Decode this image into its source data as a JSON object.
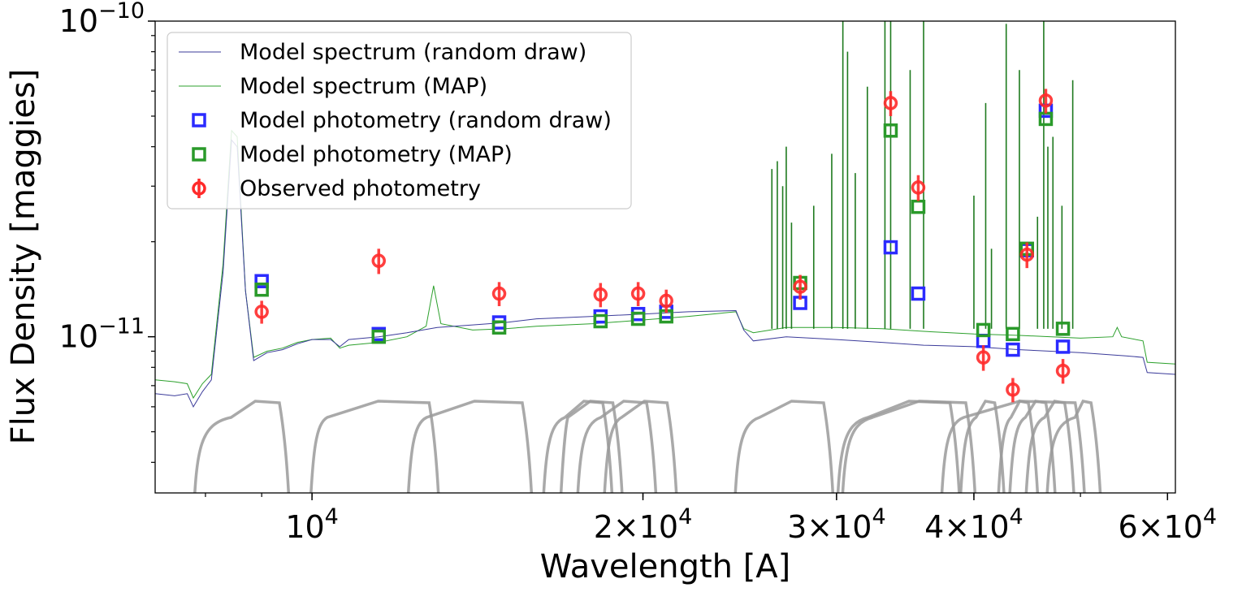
{
  "chart_data": {
    "type": "scatter",
    "title": "",
    "xlabel": "Wavelength [A]",
    "ylabel": "Flux Density [maggies]",
    "xscale": "log",
    "yscale": "log",
    "xlim": [
      7200,
      61000
    ],
    "ylim": [
      3.2e-12,
      1e-10
    ],
    "grid": false,
    "legend_position": "top-left",
    "x_ticks": [
      {
        "value": 10000,
        "base": "10",
        "exp": "4",
        "mantissa": ""
      },
      {
        "value": 20000,
        "base": "10",
        "exp": "4",
        "mantissa": "2"
      },
      {
        "value": 30000,
        "base": "10",
        "exp": "4",
        "mantissa": "3"
      },
      {
        "value": 40000,
        "base": "10",
        "exp": "4",
        "mantissa": "4"
      },
      {
        "value": 60000,
        "base": "10",
        "exp": "4",
        "mantissa": "6"
      }
    ],
    "y_ticks": [
      {
        "value": 1e-11,
        "base": "10",
        "exp": "−11"
      },
      {
        "value": 1e-10,
        "base": "10",
        "exp": "−10"
      }
    ],
    "colors": {
      "random_spec": "#3b3b9a",
      "map_spec": "#2ca02c",
      "random_phot": "#2b2bff",
      "map_phot": "#2a9a2a",
      "observed": "#ff2a2a",
      "filters": "#9a9a9a"
    },
    "legend": [
      {
        "key": "random_spec",
        "label": "Model spectrum (random draw)",
        "marker": "line"
      },
      {
        "key": "map_spec",
        "label": "Model spectrum (MAP)",
        "marker": "line"
      },
      {
        "key": "random_phot",
        "label": "Model photometry (random draw)",
        "marker": "square"
      },
      {
        "key": "map_phot",
        "label": "Model photometry (MAP)",
        "marker": "square"
      },
      {
        "key": "observed",
        "label": "Observed photometry",
        "marker": "circle-err"
      }
    ],
    "spectrum_random_draw": [
      [
        7200,
        6.6e-12
      ],
      [
        7500,
        6.5e-12
      ],
      [
        7700,
        6.6e-12
      ],
      [
        7800,
        6e-12
      ],
      [
        7950,
        6.7e-12
      ],
      [
        8100,
        7.3e-12
      ],
      [
        8300,
        1.6e-11
      ],
      [
        8450,
        4.2e-11
      ],
      [
        8550,
        4e-11
      ],
      [
        8700,
        1.4e-11
      ],
      [
        8850,
        8.4e-12
      ],
      [
        9100,
        8.9e-12
      ],
      [
        9400,
        9.1e-12
      ],
      [
        9700,
        9.5e-12
      ],
      [
        10000,
        9.8e-12
      ],
      [
        10400,
        9.8e-12
      ],
      [
        10600,
        9.3e-12
      ],
      [
        10800,
        9.8e-12
      ],
      [
        11500,
        1e-11
      ],
      [
        12200,
        1.03e-11
      ],
      [
        13000,
        1.07e-11
      ],
      [
        14000,
        1.09e-11
      ],
      [
        15000,
        1.11e-11
      ],
      [
        16000,
        1.14e-11
      ],
      [
        18000,
        1.16e-11
      ],
      [
        20000,
        1.18e-11
      ],
      [
        22000,
        1.2e-11
      ],
      [
        24300,
        1.21e-11
      ],
      [
        24700,
        1.05e-11
      ],
      [
        25200,
        9.7e-12
      ],
      [
        27000,
        1e-11
      ],
      [
        30000,
        9.8e-12
      ],
      [
        33000,
        9.6e-12
      ],
      [
        36000,
        9.4e-12
      ],
      [
        40000,
        9.3e-12
      ],
      [
        44000,
        9.1e-12
      ],
      [
        50000,
        8.9e-12
      ],
      [
        55000,
        8.7e-12
      ],
      [
        57000,
        8.6e-12
      ],
      [
        57500,
        7.7e-12
      ],
      [
        61000,
        7.6e-12
      ]
    ],
    "spectrum_map": [
      [
        7200,
        7.3e-12
      ],
      [
        7500,
        7.2e-12
      ],
      [
        7700,
        7.1e-12
      ],
      [
        7800,
        6.4e-12
      ],
      [
        7950,
        7.1e-12
      ],
      [
        8100,
        7.6e-12
      ],
      [
        8300,
        1.7e-11
      ],
      [
        8450,
        4.5e-11
      ],
      [
        8550,
        4.3e-11
      ],
      [
        8700,
        1.4e-11
      ],
      [
        8850,
        8.6e-12
      ],
      [
        9100,
        9e-12
      ],
      [
        9400,
        9.2e-12
      ],
      [
        9700,
        9.6e-12
      ],
      [
        10000,
        9.8e-12
      ],
      [
        10400,
        9.9e-12
      ],
      [
        10600,
        9.2e-12
      ],
      [
        10800,
        9.4e-12
      ],
      [
        11500,
        9.6e-12
      ],
      [
        12200,
        1e-11
      ],
      [
        12700,
        1.08e-11
      ],
      [
        12900,
        1.45e-11
      ],
      [
        13100,
        1.1e-11
      ],
      [
        14000,
        1.05e-11
      ],
      [
        15000,
        1.06e-11
      ],
      [
        16000,
        1.08e-11
      ],
      [
        18000,
        1.1e-11
      ],
      [
        20000,
        1.13e-11
      ],
      [
        22000,
        1.16e-11
      ],
      [
        24300,
        1.2e-11
      ],
      [
        24700,
        1.06e-11
      ],
      [
        25200,
        1.03e-11
      ],
      [
        27000,
        1.07e-11
      ],
      [
        30000,
        1.07e-11
      ],
      [
        33000,
        1.06e-11
      ],
      [
        36000,
        1.04e-11
      ],
      [
        40000,
        1.02e-11
      ],
      [
        44000,
        1.01e-11
      ],
      [
        50000,
        9.9e-12
      ],
      [
        53500,
        1e-11
      ],
      [
        54000,
        1.07e-11
      ],
      [
        54500,
        1e-11
      ],
      [
        57000,
        9.7e-12
      ],
      [
        57500,
        8.3e-12
      ],
      [
        61000,
        8.2e-12
      ]
    ],
    "emission_lines": [
      [
        26200,
        3.4e-11
      ],
      [
        26500,
        3.6e-11
      ],
      [
        26800,
        3e-11
      ],
      [
        27000,
        4e-11
      ],
      [
        27300,
        2.3e-11
      ],
      [
        28600,
        2.6e-11
      ],
      [
        29700,
        3.8e-11
      ],
      [
        30400,
        1e-10
      ],
      [
        30700,
        8e-11
      ],
      [
        31200,
        3.3e-11
      ],
      [
        32000,
        6.2e-11
      ],
      [
        33200,
        1e-10
      ],
      [
        33600,
        1e-10
      ],
      [
        35000,
        7e-11
      ],
      [
        36000,
        1e-10
      ],
      [
        40000,
        2.8e-11
      ],
      [
        41000,
        5.5e-11
      ],
      [
        41500,
        1.9e-11
      ],
      [
        42800,
        9.8e-11
      ],
      [
        44000,
        7e-11
      ],
      [
        45700,
        2.4e-11
      ],
      [
        46300,
        1e-10
      ],
      [
        46700,
        4e-11
      ],
      [
        47200,
        4.3e-11
      ],
      [
        48100,
        2.6e-11
      ],
      [
        49200,
        6.5e-11
      ]
    ],
    "filters": [
      [
        7800,
        8300,
        9500
      ],
      [
        9950,
        10150,
        13000
      ],
      [
        12200,
        12500,
        15800
      ],
      [
        16800,
        16800,
        19100
      ],
      [
        16200,
        16700,
        18700
      ],
      [
        17400,
        18000,
        20500
      ],
      [
        18400,
        18800,
        21400
      ],
      [
        24200,
        25100,
        29700
      ],
      [
        30300,
        31800,
        40000
      ],
      [
        30000,
        31500,
        38700
      ],
      [
        37300,
        38500,
        50300
      ],
      [
        38800,
        39500,
        42500
      ],
      [
        42000,
        42500,
        45600
      ],
      [
        43000,
        43800,
        47300
      ],
      [
        44500,
        45600,
        49200
      ],
      [
        46500,
        48600,
        52000
      ]
    ],
    "photometry": [
      {
        "x": 9000,
        "random": 1.5e-11,
        "map": 1.41e-11,
        "obs": 1.2e-11,
        "obs_err": 1e-12
      },
      {
        "x": 11500,
        "random": 1.02e-11,
        "map": 1e-11,
        "obs": 1.74e-11,
        "obs_err": 1.6e-12
      },
      {
        "x": 14800,
        "random": 1.11e-11,
        "map": 1.07e-11,
        "obs": 1.37e-11,
        "obs_err": 1.2e-12
      },
      {
        "x": 18300,
        "random": 1.16e-11,
        "map": 1.12e-11,
        "obs": 1.36e-11,
        "obs_err": 1.2e-12
      },
      {
        "x": 19800,
        "random": 1.18e-11,
        "map": 1.14e-11,
        "obs": 1.37e-11,
        "obs_err": 1.2e-12
      },
      {
        "x": 21000,
        "random": 1.2e-11,
        "map": 1.16e-11,
        "obs": 1.3e-11,
        "obs_err": 1.1e-12
      },
      {
        "x": 27800,
        "random": 1.28e-11,
        "map": 1.48e-11,
        "obs": 1.44e-11,
        "obs_err": 1.3e-12
      },
      {
        "x": 33600,
        "random": 1.92e-11,
        "map": 4.5e-11,
        "obs": 5.5e-11,
        "obs_err": 5e-12
      },
      {
        "x": 35600,
        "random": 1.37e-11,
        "map": 2.58e-11,
        "obs": 2.97e-11,
        "obs_err": 2.8e-12
      },
      {
        "x": 40800,
        "random": 9.7e-12,
        "map": 1.05e-11,
        "obs": 8.6e-12,
        "obs_err": 8e-13
      },
      {
        "x": 43400,
        "random": 9.1e-12,
        "map": 1.02e-11,
        "obs": 6.8e-12,
        "obs_err": 6e-13
      },
      {
        "x": 44700,
        "random": 1.88e-11,
        "map": 1.9e-11,
        "obs": 1.82e-11,
        "obs_err": 1.7e-12
      },
      {
        "x": 46500,
        "random": 5.2e-11,
        "map": 4.9e-11,
        "obs": 5.6e-11,
        "obs_err": 5e-12
      },
      {
        "x": 48200,
        "random": 9.3e-12,
        "map": 1.06e-11,
        "obs": 7.8e-12,
        "obs_err": 7e-13
      }
    ]
  }
}
